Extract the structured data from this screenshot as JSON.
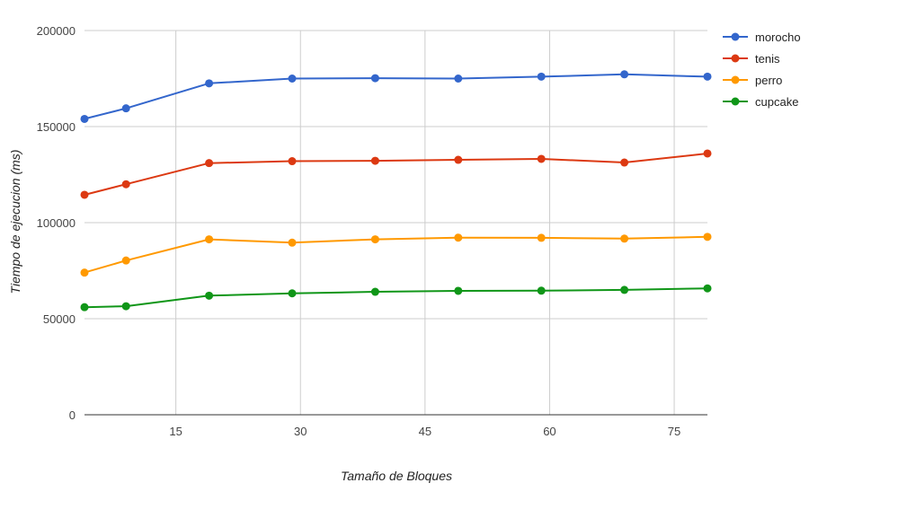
{
  "chart_data": {
    "type": "line",
    "title": "",
    "xlabel": "Tamaño de Bloques",
    "ylabel": "Tiempo de ejecucion (ms)",
    "xlim": [
      4,
      79
    ],
    "ylim": [
      0,
      200000
    ],
    "x_ticks": [
      15,
      30,
      45,
      60,
      75
    ],
    "y_ticks": [
      0,
      50000,
      100000,
      150000,
      200000
    ],
    "grid": true,
    "legend_position": "right",
    "x": [
      4,
      9,
      19,
      29,
      39,
      49,
      59,
      69,
      79
    ],
    "series": [
      {
        "name": "morocho",
        "color": "#3366cc",
        "values": [
          154000,
          159500,
          172500,
          175000,
          175200,
          175000,
          176000,
          177200,
          176000
        ]
      },
      {
        "name": "tenis",
        "color": "#dc3912",
        "values": [
          114500,
          120000,
          131000,
          132000,
          132200,
          132700,
          133200,
          131300,
          136000
        ]
      },
      {
        "name": "perro",
        "color": "#ff9900",
        "values": [
          74000,
          80300,
          91300,
          89600,
          91300,
          92200,
          92100,
          91700,
          92600
        ]
      },
      {
        "name": "cupcake",
        "color": "#109618",
        "values": [
          56000,
          56500,
          62000,
          63200,
          64000,
          64500,
          64600,
          65000,
          65800
        ]
      }
    ]
  }
}
